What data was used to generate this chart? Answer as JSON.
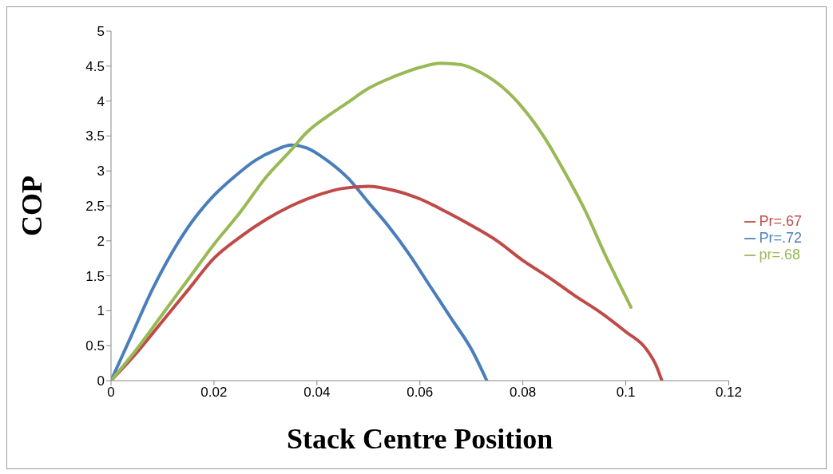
{
  "chart_data": {
    "type": "line",
    "xlabel": "Stack Centre Position",
    "ylabel": "COP",
    "xlim": [
      0,
      0.12
    ],
    "xticks": [
      0,
      0.02,
      0.04,
      0.06,
      0.08,
      0.1,
      0.12
    ],
    "ylim": [
      0,
      5
    ],
    "yticks": [
      0,
      0.5,
      1,
      1.5,
      2,
      2.5,
      3,
      3.5,
      4,
      4.5,
      5
    ],
    "grid": false,
    "legend": "right",
    "marker": "none",
    "line_style": "solid",
    "series": [
      {
        "name": "Pr=.72",
        "color": "#4a7ebb",
        "x": [
          0,
          0.004,
          0.008,
          0.012,
          0.016,
          0.02,
          0.024,
          0.028,
          0.032,
          0.035,
          0.038,
          0.042,
          0.046,
          0.05,
          0.054,
          0.058,
          0.062,
          0.066,
          0.07,
          0.073
        ],
        "values": [
          0,
          0.65,
          1.3,
          1.85,
          2.3,
          2.65,
          2.92,
          3.15,
          3.3,
          3.37,
          3.33,
          3.15,
          2.9,
          2.55,
          2.2,
          1.8,
          1.35,
          0.9,
          0.45,
          0
        ]
      },
      {
        "name": "Pr=.67",
        "color": "#be4b48",
        "x": [
          0,
          0.005,
          0.01,
          0.015,
          0.02,
          0.025,
          0.03,
          0.035,
          0.04,
          0.045,
          0.05,
          0.055,
          0.06,
          0.065,
          0.07,
          0.075,
          0.08,
          0.085,
          0.09,
          0.095,
          0.1,
          0.104,
          0.106,
          0.107
        ],
        "values": [
          0,
          0.4,
          0.85,
          1.3,
          1.75,
          2.05,
          2.3,
          2.5,
          2.65,
          2.75,
          2.78,
          2.72,
          2.6,
          2.42,
          2.22,
          2.0,
          1.72,
          1.48,
          1.22,
          0.98,
          0.7,
          0.45,
          0.2,
          0
        ]
      },
      {
        "name": "pr=.68",
        "color": "#98b954",
        "x": [
          0,
          0.005,
          0.01,
          0.015,
          0.02,
          0.025,
          0.03,
          0.035,
          0.038,
          0.042,
          0.046,
          0.05,
          0.055,
          0.06,
          0.064,
          0.068,
          0.072,
          0.076,
          0.08,
          0.084,
          0.088,
          0.092,
          0.096,
          0.1,
          0.101
        ],
        "values": [
          0,
          0.45,
          0.95,
          1.45,
          1.95,
          2.4,
          2.9,
          3.3,
          3.55,
          3.78,
          3.98,
          4.18,
          4.35,
          4.48,
          4.54,
          4.52,
          4.4,
          4.2,
          3.9,
          3.5,
          3.0,
          2.45,
          1.8,
          1.2,
          1.05
        ]
      }
    ]
  }
}
